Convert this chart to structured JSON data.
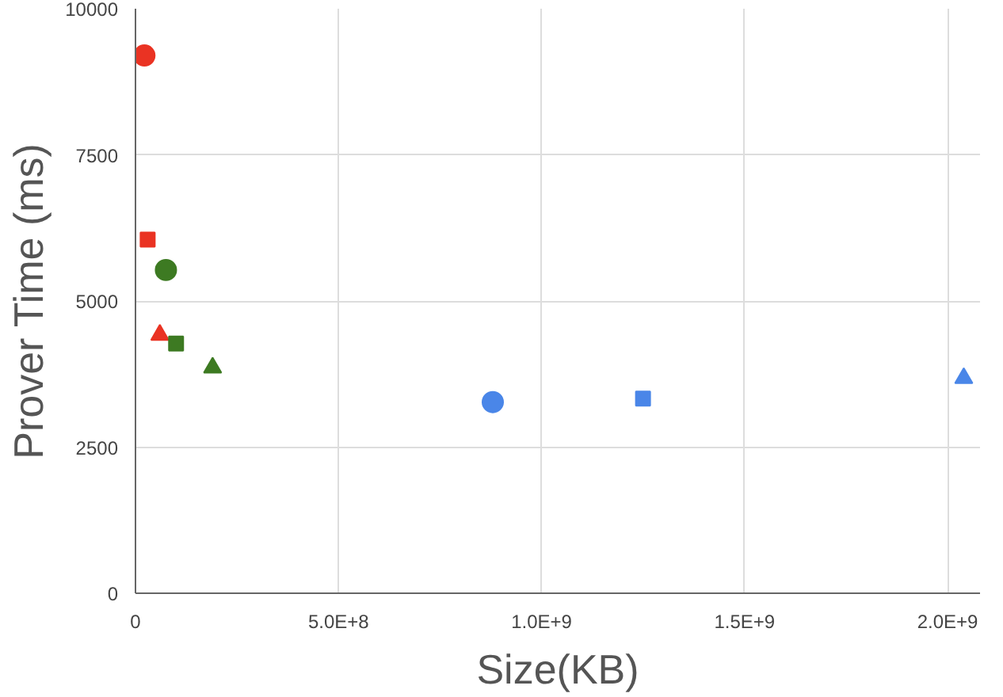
{
  "chart_data": {
    "type": "scatter",
    "xlabel": "Size(KB)",
    "ylabel": "Prover Time (ms)",
    "xlim": [
      0,
      2080000000
    ],
    "ylim": [
      0,
      10000
    ],
    "xticks": [
      {
        "value": 0,
        "label": "0"
      },
      {
        "value": 500000000,
        "label": "5.0E+8"
      },
      {
        "value": 1000000000,
        "label": "1.0E+9"
      },
      {
        "value": 1500000000,
        "label": "1.5E+9"
      },
      {
        "value": 2000000000,
        "label": "2.0E+9"
      }
    ],
    "yticks": [
      0,
      2500,
      5000,
      7500,
      10000
    ],
    "grid": true,
    "series": [
      {
        "color": "#ea3323",
        "marker": "circle",
        "x": [
          22000000
        ],
        "values": [
          9200
        ]
      },
      {
        "color": "#ea3323",
        "marker": "square",
        "x": [
          30000000
        ],
        "values": [
          6050
        ]
      },
      {
        "color": "#ea3323",
        "marker": "triangle",
        "x": [
          60000000
        ],
        "values": [
          4420
        ]
      },
      {
        "color": "#3d7a22",
        "marker": "circle",
        "x": [
          75000000
        ],
        "values": [
          5530
        ]
      },
      {
        "color": "#3d7a22",
        "marker": "square",
        "x": [
          100000000
        ],
        "values": [
          4270
        ]
      },
      {
        "color": "#3d7a22",
        "marker": "triangle",
        "x": [
          190000000
        ],
        "values": [
          3860
        ]
      },
      {
        "color": "#4a86e8",
        "marker": "circle",
        "x": [
          880000000
        ],
        "values": [
          3270
        ]
      },
      {
        "color": "#4a86e8",
        "marker": "square",
        "x": [
          1250000000
        ],
        "values": [
          3330
        ]
      },
      {
        "color": "#4a86e8",
        "marker": "triangle",
        "x": [
          2040000000
        ],
        "values": [
          3680
        ]
      }
    ]
  }
}
